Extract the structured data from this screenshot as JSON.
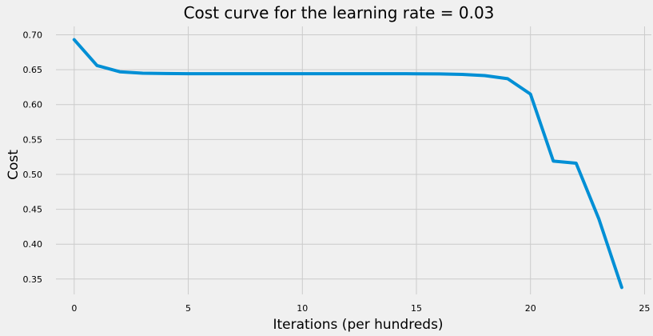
{
  "chart_data": {
    "type": "line",
    "title": "Cost curve for the learning rate = 0.03",
    "xlabel": "Iterations (per hundreds)",
    "ylabel": "Cost",
    "xlim": [
      -0.8,
      25.3
    ],
    "ylim": [
      0.328,
      0.712
    ],
    "xticks": [
      0,
      5,
      10,
      15,
      20,
      25
    ],
    "yticks": [
      0.35,
      0.4,
      0.45,
      0.5,
      0.55,
      0.6,
      0.65,
      0.7
    ],
    "grid": true,
    "series": [
      {
        "color": "#008fd5",
        "x": [
          0,
          1,
          2,
          3,
          4,
          5,
          6,
          7,
          8,
          9,
          10,
          11,
          12,
          13,
          14,
          15,
          16,
          17,
          18,
          19,
          20,
          21,
          22,
          23,
          24
        ],
        "y": [
          0.693,
          0.656,
          0.647,
          0.645,
          0.6445,
          0.6443,
          0.6443,
          0.6443,
          0.6443,
          0.6443,
          0.6443,
          0.6443,
          0.6443,
          0.6443,
          0.6442,
          0.6441,
          0.6439,
          0.6432,
          0.6415,
          0.637,
          0.615,
          0.519,
          0.516,
          0.436,
          0.338
        ]
      }
    ]
  }
}
